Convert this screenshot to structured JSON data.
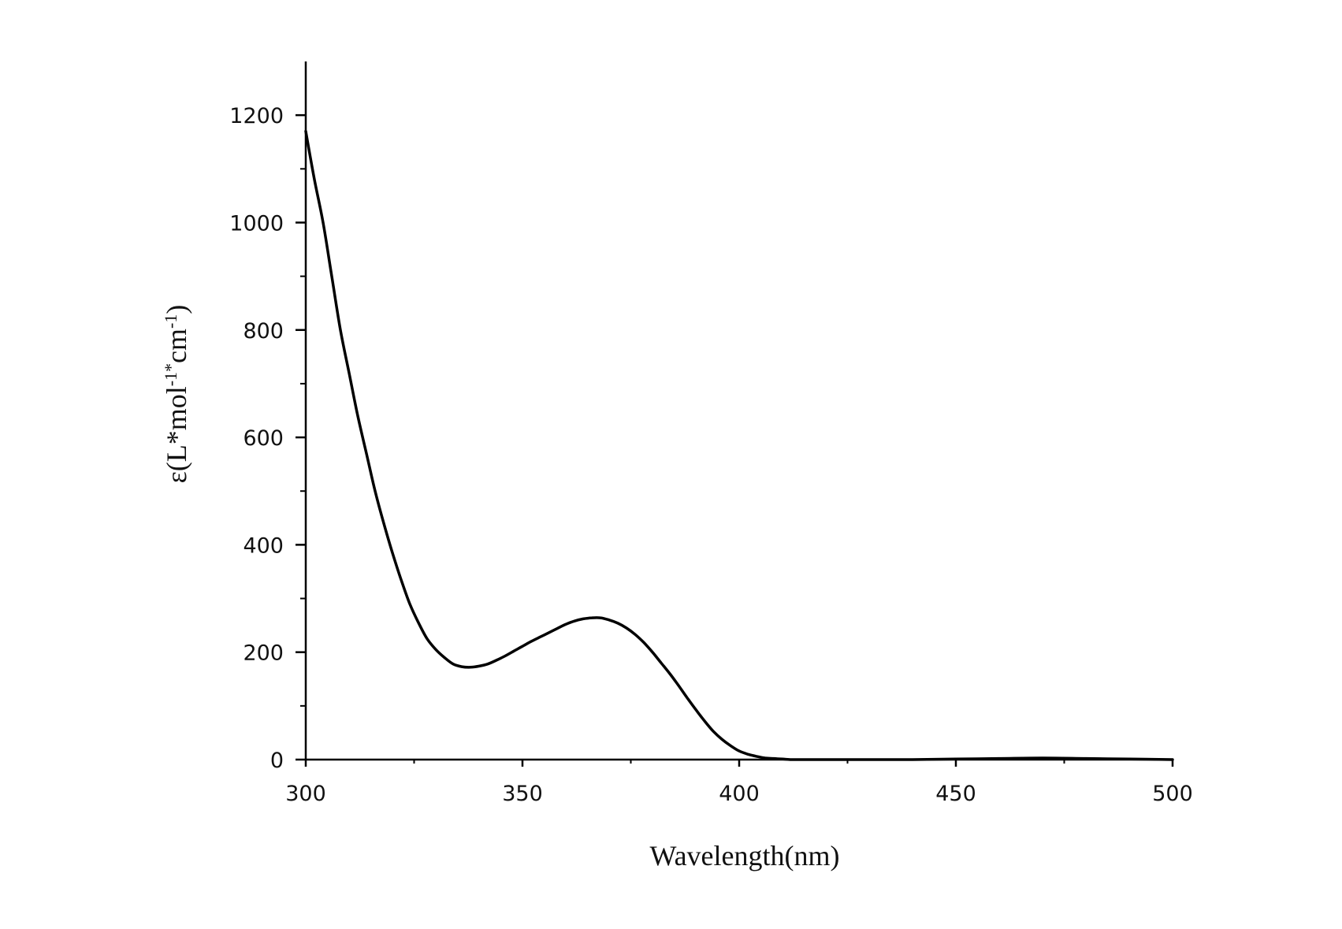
{
  "chart_data": {
    "type": "line",
    "title": "",
    "xlabel": "Wavelength(nm)",
    "ylabel": {
      "base": "ε(L",
      "mid1": "mol",
      "mid2": "cm",
      "star": "*",
      "exp": "-1",
      "close": ")"
    },
    "xlim": [
      300,
      500
    ],
    "ylim": [
      0,
      1300
    ],
    "xticks": [
      300,
      350,
      400,
      450,
      500
    ],
    "xtick_labels": [
      "300",
      "350",
      "400",
      "450",
      "500"
    ],
    "yticks": [
      0,
      200,
      400,
      600,
      800,
      1000,
      1200
    ],
    "ytick_labels": [
      "0",
      "200",
      "400",
      "600",
      "800",
      "1000",
      "1200"
    ],
    "grid": false,
    "line_color": "#000000",
    "series": [
      {
        "x": [
          300,
          302,
          304,
          306,
          308,
          310,
          312,
          314,
          316,
          318,
          320,
          322,
          324,
          326,
          328,
          330,
          332,
          334,
          336,
          338,
          340,
          342,
          344,
          346,
          348,
          350,
          352,
          354,
          356,
          358,
          360,
          362,
          364,
          366,
          368,
          370,
          372,
          374,
          376,
          378,
          380,
          382,
          384,
          386,
          388,
          390,
          392,
          394,
          396,
          398,
          400,
          402,
          404,
          406,
          408,
          410,
          412,
          414,
          416,
          418,
          420,
          425,
          430,
          440,
          450,
          460,
          470,
          480,
          490,
          500
        ],
        "y": [
          1170,
          1080,
          1000,
          900,
          800,
          720,
          640,
          570,
          500,
          440,
          385,
          335,
          290,
          255,
          225,
          205,
          190,
          178,
          173,
          172,
          174,
          178,
          185,
          193,
          202,
          211,
          220,
          228,
          236,
          244,
          252,
          258,
          262,
          264,
          264,
          260,
          254,
          245,
          233,
          218,
          200,
          180,
          160,
          138,
          115,
          93,
          72,
          53,
          38,
          26,
          16,
          10,
          6,
          3,
          2,
          1,
          0,
          0,
          0,
          0,
          0,
          0,
          0,
          0,
          1,
          2,
          3,
          2,
          1,
          0
        ]
      }
    ]
  }
}
